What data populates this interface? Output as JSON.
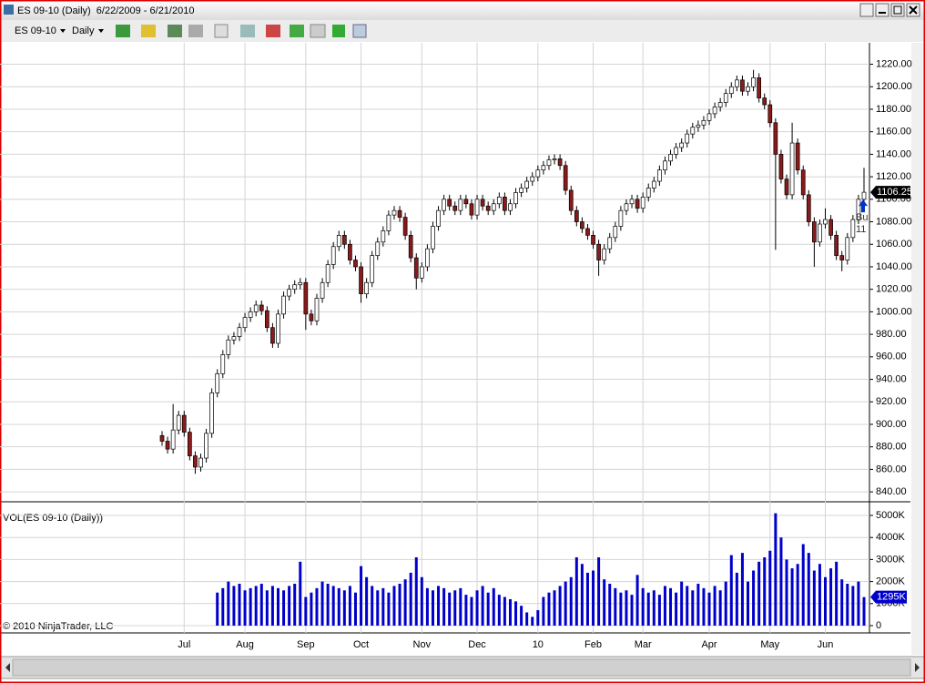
{
  "window": {
    "title": "ES 09-10 (Daily)  6/22/2009 - 6/21/2010",
    "instrument": "ES 09-10",
    "period": "Daily",
    "copyright": "© 2010 NinjaTrader, LLC"
  },
  "chart_data": [
    {
      "type": "candlestick",
      "up_color": "#ffffff",
      "down_color": "#8b1a1a",
      "outline_color": "#000000",
      "grid": true,
      "categories": [
        null,
        null,
        null,
        null,
        "Jul",
        null,
        null,
        null,
        null,
        null,
        null,
        null,
        null,
        null,
        null,
        "Aug",
        null,
        null,
        null,
        null,
        null,
        null,
        null,
        null,
        null,
        null,
        "Sep",
        null,
        null,
        null,
        null,
        null,
        null,
        null,
        null,
        null,
        "Oct",
        null,
        null,
        null,
        null,
        null,
        null,
        null,
        null,
        null,
        null,
        "Nov",
        null,
        null,
        null,
        null,
        null,
        null,
        null,
        null,
        null,
        "Dec",
        null,
        null,
        null,
        null,
        null,
        null,
        null,
        null,
        null,
        null,
        "10",
        null,
        null,
        null,
        null,
        null,
        null,
        null,
        null,
        null,
        "Feb",
        null,
        null,
        null,
        null,
        null,
        null,
        null,
        null,
        "Mar",
        null,
        null,
        null,
        null,
        null,
        null,
        null,
        null,
        null,
        null,
        null,
        "Apr",
        null,
        null,
        null,
        null,
        null,
        null,
        null,
        null,
        null,
        null,
        "May",
        null,
        null,
        null,
        null,
        null,
        null,
        null,
        null,
        null,
        "Jun",
        null,
        null,
        null,
        null,
        null,
        null,
        null
      ],
      "open": [
        890,
        885,
        878,
        895,
        908,
        893,
        872,
        862,
        870,
        892,
        928,
        945,
        962,
        975,
        978,
        986,
        995,
        1000,
        1006,
        1001,
        986,
        972,
        998,
        1014,
        1020,
        1024,
        1026,
        998,
        992,
        1012,
        1026,
        1042,
        1058,
        1068,
        1060,
        1046,
        1040,
        1016,
        1026,
        1050,
        1062,
        1072,
        1086,
        1090,
        1084,
        1068,
        1048,
        1030,
        1040,
        1056,
        1076,
        1090,
        1100,
        1094,
        1090,
        1100,
        1096,
        1086,
        1100,
        1094,
        1090,
        1096,
        1102,
        1090,
        1096,
        1106,
        1110,
        1116,
        1120,
        1126,
        1130,
        1135,
        1136,
        1130,
        1108,
        1090,
        1080,
        1074,
        1068,
        1060,
        1046,
        1056,
        1066,
        1076,
        1090,
        1096,
        1100,
        1092,
        1102,
        1110,
        1116,
        1126,
        1134,
        1140,
        1146,
        1150,
        1158,
        1164,
        1166,
        1170,
        1176,
        1182,
        1186,
        1194,
        1200,
        1206,
        1196,
        1200,
        1208,
        1190,
        1184,
        1168,
        1140,
        1118,
        1104,
        1150,
        1126,
        1104,
        1080,
        1062,
        1078,
        1082,
        1068,
        1050,
        1046,
        1066,
        1082,
        1100
      ],
      "high": [
        894,
        889,
        918,
        912,
        912,
        897,
        876,
        874,
        896,
        932,
        949,
        966,
        979,
        982,
        990,
        999,
        1004,
        1010,
        1010,
        1005,
        990,
        1002,
        1018,
        1024,
        1028,
        1030,
        1030,
        1002,
        1016,
        1030,
        1046,
        1062,
        1072,
        1072,
        1064,
        1050,
        1044,
        1030,
        1054,
        1066,
        1076,
        1090,
        1094,
        1094,
        1088,
        1072,
        1052,
        1044,
        1060,
        1080,
        1094,
        1104,
        1104,
        1098,
        1104,
        1104,
        1100,
        1104,
        1104,
        1098,
        1100,
        1106,
        1106,
        1100,
        1110,
        1114,
        1120,
        1124,
        1130,
        1134,
        1139,
        1140,
        1140,
        1134,
        1112,
        1094,
        1084,
        1078,
        1072,
        1064,
        1060,
        1070,
        1080,
        1094,
        1100,
        1104,
        1104,
        1106,
        1114,
        1120,
        1130,
        1138,
        1144,
        1150,
        1154,
        1162,
        1168,
        1170,
        1174,
        1180,
        1186,
        1190,
        1198,
        1204,
        1210,
        1210,
        1204,
        1215,
        1212,
        1194,
        1188,
        1172,
        1144,
        1122,
        1168,
        1154,
        1130,
        1108,
        1084,
        1082,
        1092,
        1086,
        1072,
        1054,
        1070,
        1086,
        1104,
        1128
      ],
      "low": [
        881,
        874,
        874,
        891,
        889,
        868,
        856,
        858,
        866,
        888,
        924,
        941,
        958,
        971,
        974,
        982,
        991,
        996,
        997,
        982,
        968,
        968,
        994,
        1010,
        1016,
        1020,
        984,
        988,
        988,
        1008,
        1022,
        1038,
        1054,
        1056,
        1042,
        1036,
        1008,
        1012,
        1022,
        1046,
        1058,
        1068,
        1082,
        1080,
        1064,
        1044,
        1020,
        1026,
        1036,
        1052,
        1072,
        1086,
        1090,
        1086,
        1086,
        1092,
        1082,
        1082,
        1090,
        1086,
        1086,
        1092,
        1086,
        1086,
        1092,
        1102,
        1106,
        1112,
        1116,
        1122,
        1126,
        1131,
        1126,
        1104,
        1086,
        1076,
        1070,
        1064,
        1056,
        1032,
        1042,
        1052,
        1062,
        1072,
        1086,
        1092,
        1088,
        1088,
        1098,
        1106,
        1112,
        1122,
        1130,
        1136,
        1142,
        1146,
        1154,
        1160,
        1162,
        1166,
        1172,
        1178,
        1182,
        1190,
        1196,
        1192,
        1192,
        1196,
        1186,
        1180,
        1164,
        1055,
        1114,
        1100,
        1100,
        1122,
        1100,
        1076,
        1040,
        1058,
        1074,
        1064,
        1046,
        1036,
        1042,
        1062,
        1078,
        1096
      ],
      "close": [
        885,
        878,
        895,
        908,
        893,
        872,
        862,
        870,
        892,
        928,
        945,
        962,
        975,
        978,
        986,
        995,
        1000,
        1006,
        1001,
        986,
        972,
        998,
        1014,
        1020,
        1024,
        1026,
        998,
        992,
        1012,
        1026,
        1042,
        1058,
        1068,
        1060,
        1046,
        1040,
        1016,
        1026,
        1050,
        1062,
        1072,
        1086,
        1090,
        1084,
        1068,
        1048,
        1030,
        1040,
        1056,
        1076,
        1090,
        1100,
        1094,
        1090,
        1100,
        1096,
        1086,
        1100,
        1094,
        1090,
        1096,
        1102,
        1090,
        1096,
        1106,
        1110,
        1116,
        1120,
        1126,
        1130,
        1135,
        1136,
        1130,
        1108,
        1090,
        1080,
        1074,
        1068,
        1060,
        1046,
        1056,
        1066,
        1076,
        1090,
        1096,
        1100,
        1092,
        1102,
        1110,
        1116,
        1126,
        1134,
        1140,
        1146,
        1150,
        1158,
        1164,
        1166,
        1170,
        1176,
        1182,
        1186,
        1194,
        1200,
        1206,
        1196,
        1200,
        1208,
        1190,
        1184,
        1168,
        1140,
        1118,
        1104,
        1150,
        1126,
        1104,
        1080,
        1062,
        1078,
        1082,
        1068,
        1050,
        1046,
        1066,
        1082,
        1100,
        1106.25
      ],
      "ylim": [
        832,
        1235
      ],
      "yticks": [
        {
          "value": 840,
          "label": "840.00"
        },
        {
          "value": 860,
          "label": "860.00"
        },
        {
          "value": 880,
          "label": "880.00"
        },
        {
          "value": 900,
          "label": "900.00"
        },
        {
          "value": 920,
          "label": "920.00"
        },
        {
          "value": 940,
          "label": "940.00"
        },
        {
          "value": 960,
          "label": "960.00"
        },
        {
          "value": 980,
          "label": "980.00"
        },
        {
          "value": 1000,
          "label": "1000.00"
        },
        {
          "value": 1020,
          "label": "1020.00"
        },
        {
          "value": 1040,
          "label": "1040.00"
        },
        {
          "value": 1060,
          "label": "1060.00"
        },
        {
          "value": 1080,
          "label": "1080.00"
        },
        {
          "value": 1100,
          "label": "1100.00"
        },
        {
          "value": 1120,
          "label": "1120.00"
        },
        {
          "value": 1140,
          "label": "1140.00"
        },
        {
          "value": 1160,
          "label": "1160.00"
        },
        {
          "value": 1180,
          "label": "1180.00"
        },
        {
          "value": 1200,
          "label": "1200.00"
        },
        {
          "value": 1220,
          "label": "1220.00"
        }
      ],
      "annotations": [
        "Bu",
        "11"
      ]
    },
    {
      "type": "bar",
      "title": "VOL(ES 09-10 (Daily))",
      "color": "#0000cc",
      "grid": true,
      "values": [
        null,
        null,
        null,
        null,
        null,
        null,
        null,
        null,
        null,
        null,
        1500,
        1700,
        2000,
        1800,
        1900,
        1600,
        1700,
        1800,
        1900,
        1600,
        1800,
        1700,
        1600,
        1800,
        1900,
        2900,
        1300,
        1500,
        1700,
        2000,
        1900,
        1800,
        1700,
        1600,
        1800,
        1500,
        2700,
        2200,
        1800,
        1600,
        1700,
        1500,
        1800,
        1900,
        2100,
        2400,
        3100,
        2200,
        1700,
        1600,
        1800,
        1700,
        1500,
        1600,
        1700,
        1400,
        1300,
        1600,
        1800,
        1500,
        1700,
        1400,
        1300,
        1200,
        1100,
        900,
        600,
        400,
        700,
        1300,
        1500,
        1600,
        1800,
        2000,
        2200,
        3100,
        2800,
        2400,
        2500,
        3100,
        2100,
        1900,
        1700,
        1500,
        1600,
        1400,
        2300,
        1700,
        1500,
        1600,
        1400,
        1800,
        1700,
        1500,
        2000,
        1800,
        1600,
        1900,
        1700,
        1500,
        1800,
        1600,
        2000,
        3200,
        2400,
        3300,
        2000,
        2500,
        2900,
        3100,
        3400,
        5100,
        4000,
        3000,
        2600,
        2800,
        3700,
        3300,
        2500,
        2800,
        2200,
        2600,
        2900,
        2100,
        1900,
        1800,
        2000,
        1295
      ],
      "last_value_label": "1295K",
      "ylim": [
        -331,
        5579
      ],
      "yticks": [
        0,
        {
          "value": 1000,
          "label": "1000K"
        },
        {
          "value": 2000,
          "label": "2000K"
        },
        {
          "value": 3000,
          "label": "3000K"
        },
        {
          "value": 4000,
          "label": "4000K"
        },
        {
          "value": 5000,
          "label": "5000K"
        }
      ]
    }
  ]
}
